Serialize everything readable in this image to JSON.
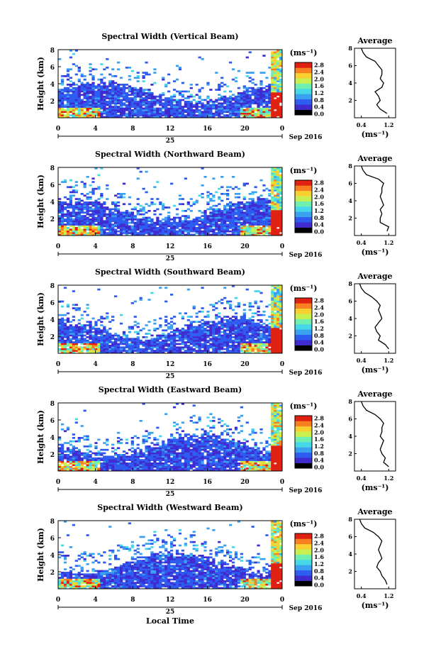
{
  "figure": {
    "x_axis_title": "Local Time",
    "date_label": "Sep 2016",
    "day_label": "25",
    "x_ticks": [
      "0",
      "4",
      "8",
      "12",
      "16",
      "20",
      "0"
    ],
    "y_axis_title": "Height (km)",
    "y_ticks": [
      "2",
      "4",
      "6",
      "8"
    ],
    "colorbar_unit": "(ms⁻¹)",
    "colorbar_ticks": [
      "0.0",
      "0.4",
      "0.8",
      "1.2",
      "1.6",
      "2.0",
      "2.4",
      "2.8"
    ],
    "avg_title": "Average",
    "avg_x_ticks": [
      "0.4",
      "1.2"
    ],
    "avg_unit": "(ms⁻¹)",
    "colors": {
      "colormap": [
        "#000000",
        "#3f2bd0",
        "#2f5cf0",
        "#3aa0f0",
        "#45d8e8",
        "#70f0b0",
        "#c8f050",
        "#f8d030",
        "#f88020",
        "#e02010"
      ]
    }
  },
  "chart_data": [
    {
      "type": "heatmap",
      "title": "Spectral Width (Vertical Beam)",
      "xlabel": "Local Time",
      "ylabel": "Height (km)",
      "xlim": [
        0,
        24
      ],
      "ylim": [
        0,
        8
      ],
      "colorbar": {
        "label": "(ms⁻¹)",
        "range": [
          0.0,
          2.8
        ]
      },
      "average_profile": {
        "title": "Average",
        "xlim": [
          0.2,
          1.4
        ],
        "height": [
          0.5,
          1.0,
          1.5,
          2.0,
          2.5,
          3.0,
          3.5,
          4.0,
          4.5,
          5.0,
          5.5,
          6.0,
          6.5,
          7.0,
          7.5,
          8.0
        ],
        "value": [
          1.15,
          0.95,
          0.85,
          0.95,
          0.9,
          0.8,
          1.0,
          1.05,
          0.95,
          1.0,
          1.0,
          0.9,
          0.8,
          0.55,
          0.45,
          0.4
        ]
      }
    },
    {
      "type": "heatmap",
      "title": "Spectral Width (Northward Beam)",
      "xlabel": "Local Time",
      "ylabel": "Height (km)",
      "xlim": [
        0,
        24
      ],
      "ylim": [
        0,
        8
      ],
      "colorbar": {
        "label": "(ms⁻¹)",
        "range": [
          0.0,
          2.8
        ]
      },
      "average_profile": {
        "title": "Average",
        "xlim": [
          0.2,
          1.4
        ],
        "height": [
          0.5,
          1.0,
          1.5,
          2.0,
          2.5,
          3.0,
          3.5,
          4.0,
          4.5,
          5.0,
          5.5,
          6.0,
          6.5,
          7.0,
          7.5,
          8.0
        ],
        "value": [
          1.15,
          1.2,
          0.95,
          0.95,
          1.0,
          0.95,
          1.05,
          1.0,
          0.95,
          1.0,
          1.0,
          1.05,
          0.9,
          0.55,
          0.45,
          0.4
        ]
      }
    },
    {
      "type": "heatmap",
      "title": "Spectral Width (Southward Beam)",
      "xlabel": "Local Time",
      "ylabel": "Height (km)",
      "xlim": [
        0,
        24
      ],
      "ylim": [
        0,
        8
      ],
      "colorbar": {
        "label": "(ms⁻¹)",
        "range": [
          0.0,
          2.8
        ]
      },
      "average_profile": {
        "title": "Average",
        "xlim": [
          0.2,
          1.4
        ],
        "height": [
          0.5,
          1.0,
          1.5,
          2.0,
          2.5,
          3.0,
          3.5,
          4.0,
          4.5,
          5.0,
          5.5,
          6.0,
          6.5,
          7.0,
          7.5,
          8.0
        ],
        "value": [
          1.2,
          1.1,
          0.9,
          0.95,
          0.85,
          0.8,
          0.9,
          1.0,
          0.95,
          0.9,
          0.95,
          0.85,
          0.7,
          0.5,
          0.4,
          0.35
        ]
      }
    },
    {
      "type": "heatmap",
      "title": "Spectral Width (Eastward Beam)",
      "xlabel": "Local Time",
      "ylabel": "Height (km)",
      "xlim": [
        0,
        24
      ],
      "ylim": [
        0,
        8
      ],
      "colorbar": {
        "label": "(ms⁻¹)",
        "range": [
          0.0,
          2.8
        ]
      },
      "average_profile": {
        "title": "Average",
        "xlim": [
          0.2,
          1.4
        ],
        "height": [
          0.5,
          1.0,
          1.5,
          2.0,
          2.5,
          3.0,
          3.5,
          4.0,
          4.5,
          5.0,
          5.5,
          6.0,
          6.5,
          7.0,
          7.5,
          8.0
        ],
        "value": [
          1.2,
          1.05,
          1.1,
          1.0,
          0.95,
          1.0,
          1.05,
          0.95,
          1.0,
          1.0,
          1.05,
          0.95,
          0.8,
          0.55,
          0.45,
          0.4
        ]
      }
    },
    {
      "type": "heatmap",
      "title": "Spectral Width (Westward Beam)",
      "xlabel": "Local Time",
      "ylabel": "Height (km)",
      "xlim": [
        0,
        24
      ],
      "ylim": [
        0,
        8
      ],
      "colorbar": {
        "label": "(ms⁻¹)",
        "range": [
          0.0,
          2.8
        ]
      },
      "average_profile": {
        "title": "Average",
        "xlim": [
          0.2,
          1.4
        ],
        "height": [
          0.5,
          1.0,
          1.5,
          2.0,
          2.5,
          3.0,
          3.5,
          4.0,
          4.5,
          5.0,
          5.5,
          6.0,
          6.5,
          7.0,
          7.5,
          8.0
        ],
        "value": [
          1.15,
          1.1,
          1.0,
          0.95,
          0.85,
          0.9,
          1.0,
          0.95,
          0.9,
          0.95,
          1.0,
          0.9,
          0.75,
          0.5,
          0.4,
          0.35
        ]
      }
    }
  ]
}
